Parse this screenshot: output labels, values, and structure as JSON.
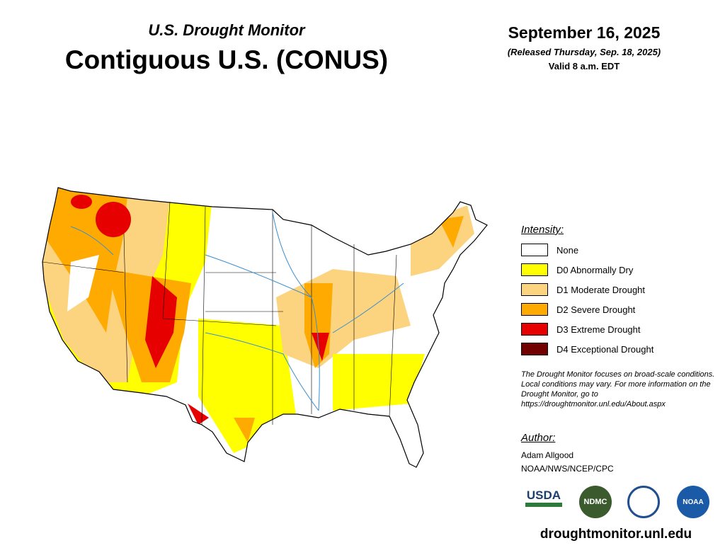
{
  "header": {
    "subtitle": "U.S. Drought Monitor",
    "title": "Contiguous U.S. (CONUS)",
    "date": "September 16, 2025",
    "released": "(Released Thursday, Sep. 18, 2025)",
    "valid": "Valid 8 a.m. EDT"
  },
  "legend": {
    "title": "Intensity:",
    "items": [
      {
        "label": "None",
        "color": "#ffffff"
      },
      {
        "label": "D0 Abnormally Dry",
        "color": "#ffff00"
      },
      {
        "label": "D1 Moderate Drought",
        "color": "#fcd37f"
      },
      {
        "label": "D2 Severe Drought",
        "color": "#ffaa00"
      },
      {
        "label": "D3 Extreme Drought",
        "color": "#e60000"
      },
      {
        "label": "D4 Exceptional Drought",
        "color": "#730000"
      }
    ]
  },
  "note": "The Drought Monitor focuses on broad-scale conditions. Local conditions may vary. For more information on the Drought Monitor, go to https://droughtmonitor.unl.edu/About.aspx",
  "author": {
    "title": "Author:",
    "name": "Adam Allgood",
    "org": "NOAA/NWS/NCEP/CPC"
  },
  "logos": [
    "USDA",
    "NDMC",
    "NOAA"
  ],
  "url": "droughtmonitor.unl.edu"
}
